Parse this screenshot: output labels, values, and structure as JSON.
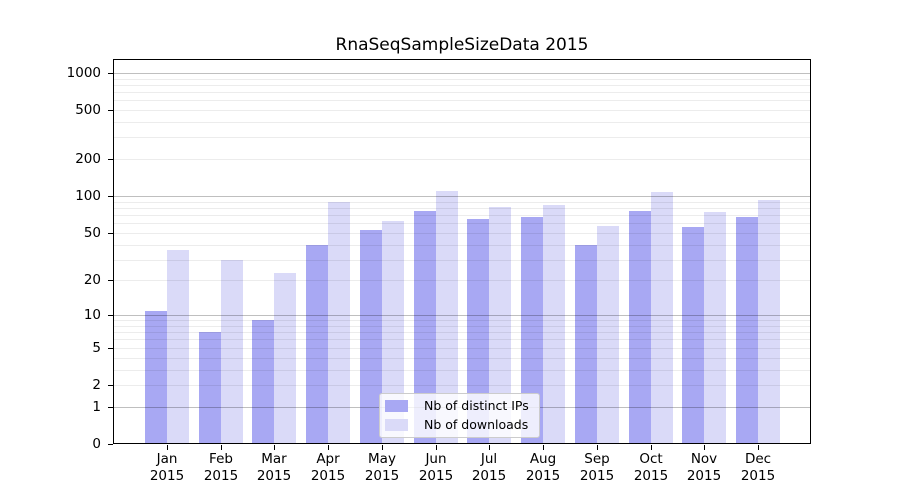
{
  "chart_data": {
    "type": "bar",
    "title": "RnaSeqSampleSizeData 2015",
    "categories": [
      "Jan",
      "Feb",
      "Mar",
      "Apr",
      "May",
      "Jun",
      "Jul",
      "Aug",
      "Sep",
      "Oct",
      "Nov",
      "Dec"
    ],
    "category_year": "2015",
    "series": [
      {
        "name": "Nb of distinct IPs",
        "color": "#a8a8f3",
        "values": [
          11,
          7,
          9,
          40,
          53,
          76,
          65,
          67,
          40,
          75,
          56,
          67
        ]
      },
      {
        "name": "Nb of downloads",
        "color": "#dadaf8",
        "values": [
          36,
          30,
          23,
          90,
          63,
          110,
          81,
          84,
          57,
          108,
          74,
          93
        ]
      }
    ],
    "yscale": "log1p",
    "ylim": [
      0,
      1000
    ],
    "ytick_labels": [
      "0",
      "1",
      "2",
      "5",
      "10",
      "20",
      "50",
      "100",
      "200",
      "500",
      "1000"
    ],
    "ytick_values": [
      0,
      1,
      2,
      5,
      10,
      20,
      50,
      100,
      200,
      500,
      1000
    ],
    "grid": true,
    "legend_position": "lower center"
  },
  "colors": {
    "background": "#ffffff",
    "axis": "#000000",
    "major_gridline": "#bfbfbf",
    "minor_gridline": "#ededed",
    "legend_border": "#cccccc"
  }
}
